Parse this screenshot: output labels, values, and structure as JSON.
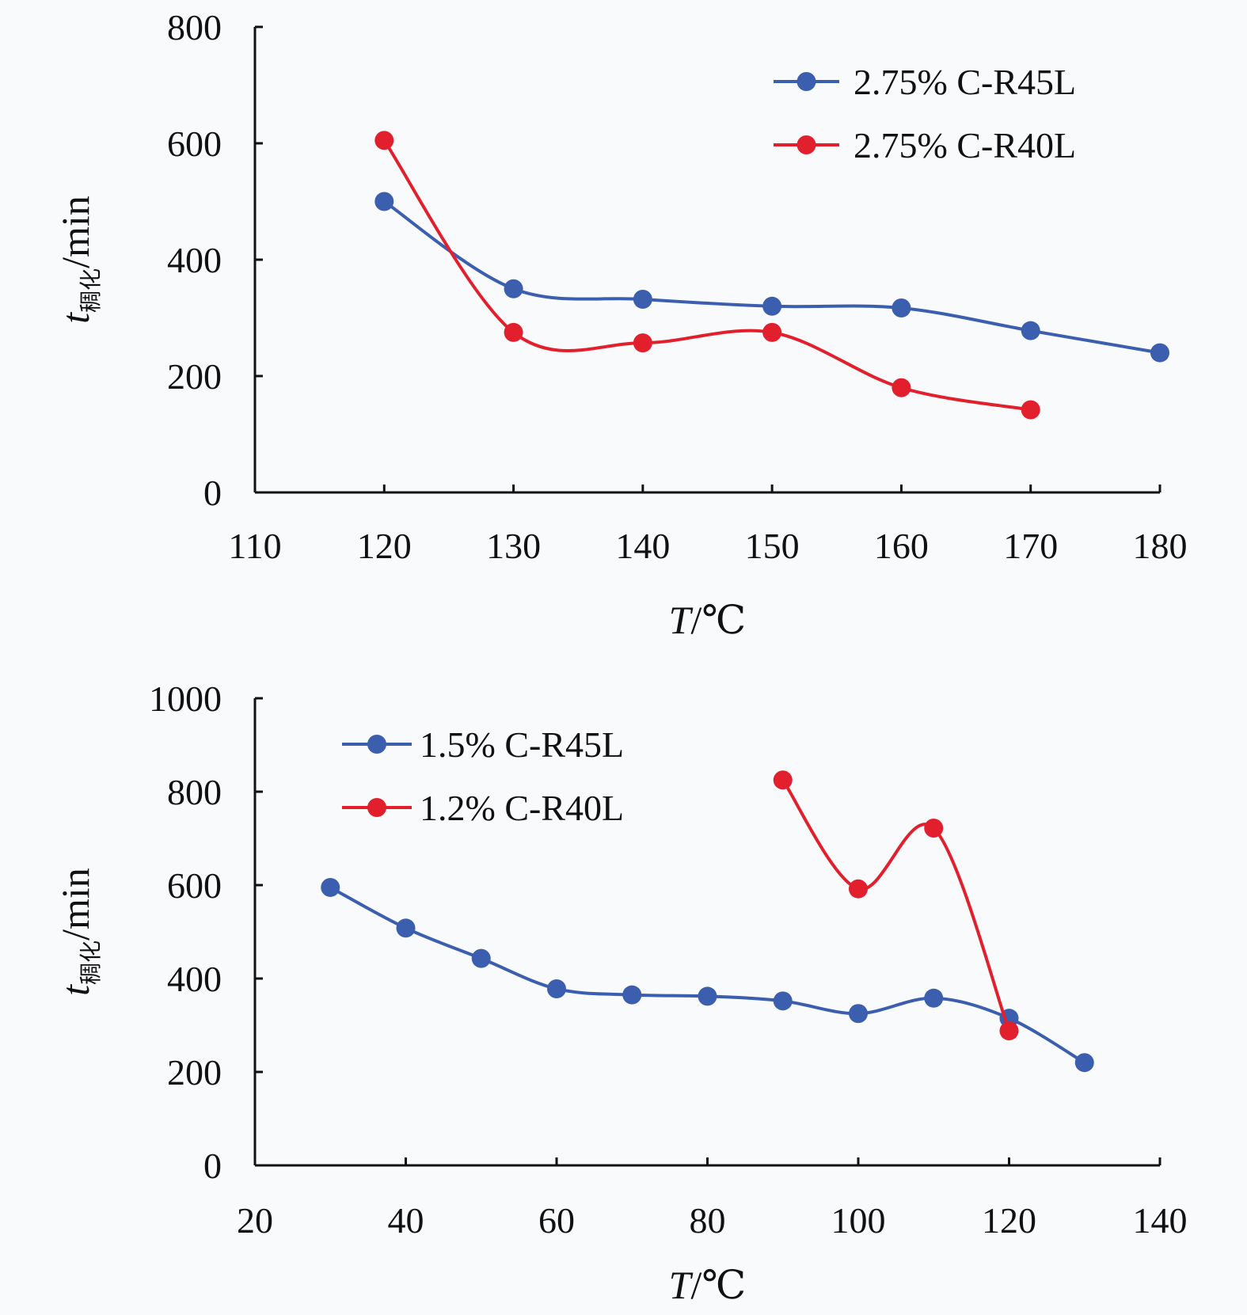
{
  "colors": {
    "blue": "#3b5fae",
    "red": "#e21f2d",
    "axis": "#111111",
    "background": "#f9fafc"
  },
  "chart_data": [
    {
      "type": "line",
      "smooth": true,
      "xlabel": "T/℃",
      "ylabel": "t稠化/min",
      "xlim": [
        110,
        180
      ],
      "ylim": [
        0,
        800
      ],
      "xticks": [
        110,
        120,
        130,
        140,
        150,
        160,
        170,
        180
      ],
      "yticks": [
        0,
        200,
        400,
        600,
        800
      ],
      "legend_position": "top-right",
      "grid": false,
      "series": [
        {
          "name": "2.75% C-R45L",
          "color": "#3b5fae",
          "x": [
            120,
            130,
            140,
            150,
            160,
            170,
            180
          ],
          "y": [
            500,
            350,
            332,
            320,
            317,
            278,
            240
          ]
        },
        {
          "name": "2.75% C-R40L",
          "color": "#e21f2d",
          "x": [
            120,
            130,
            140,
            150,
            160,
            170
          ],
          "y": [
            605,
            275,
            257,
            275,
            180,
            142
          ]
        }
      ]
    },
    {
      "type": "line",
      "smooth": true,
      "xlabel": "T/℃",
      "ylabel": "t稠化/min",
      "xlim": [
        20,
        140
      ],
      "ylim": [
        0,
        1000
      ],
      "xticks": [
        20,
        40,
        60,
        80,
        100,
        120,
        140
      ],
      "yticks": [
        0,
        200,
        400,
        600,
        800,
        1000
      ],
      "legend_position": "top-left",
      "grid": false,
      "series": [
        {
          "name": "1.5% C-R45L",
          "color": "#3b5fae",
          "x": [
            30,
            40,
            50,
            60,
            70,
            80,
            90,
            100,
            110,
            120,
            130
          ],
          "y": [
            595,
            508,
            443,
            378,
            365,
            362,
            352,
            325,
            358,
            315,
            220
          ]
        },
        {
          "name": "1.2% C-R40L",
          "color": "#e21f2d",
          "x": [
            90,
            100,
            110,
            120
          ],
          "y": [
            825,
            592,
            722,
            288
          ]
        }
      ]
    }
  ]
}
